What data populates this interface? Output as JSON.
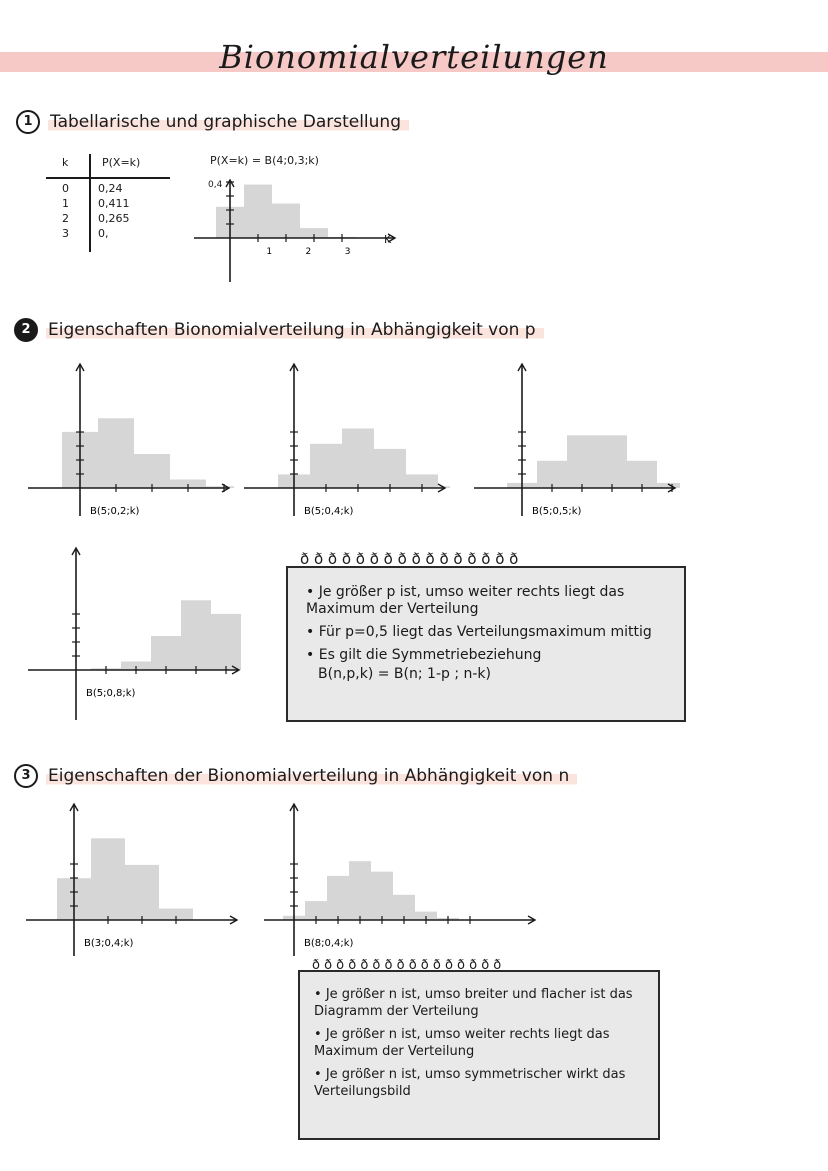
{
  "title": "Bionomialverteilungen",
  "section1": {
    "number": "1",
    "heading": "Tabellarische und graphische Darstellung",
    "table": {
      "headers": [
        "k",
        "P(X=k)"
      ],
      "rows": [
        [
          "0",
          "0,24"
        ],
        [
          "1",
          "0,411"
        ],
        [
          "2",
          "0,265"
        ],
        [
          "3",
          "0,"
        ]
      ]
    },
    "chart_title": "P(X=k) = B(4;0,3;k)",
    "y_tick": "0,4",
    "x_label": "K"
  },
  "section2": {
    "number": "2",
    "heading": "Eigenschaften Bionomialverteilung in Abhängigkeit von p",
    "notes": [
      "Je größer p ist, umso weiter rechts liegt das Maximum der Verteilung",
      "Für p=0,5 liegt das Verteilungsmaximum mittig",
      "Es gilt die Symmetriebeziehung",
      "B(n,p,k) = B(n; 1-p ; n-k)"
    ]
  },
  "section3": {
    "number": "3",
    "heading": "Eigenschaften der Bionomialverteilung in Abhängigkeit von n",
    "notes": [
      "Je größer n ist, umso breiter und flacher ist das Diagramm der Verteilung",
      "Je größer n ist, umso weiter rechts liegt das Maximum der Verteilung",
      "Je größer n ist, umso symmetrischer wirkt das Verteilungsbild"
    ]
  },
  "colors": {
    "band": "#f7c9c6",
    "bar": "#d6d6d6",
    "highlight": "#fbe3de",
    "note_box": "#e9e9e9"
  },
  "chart_data": [
    {
      "type": "bar",
      "title": "P(X=k) = B(4;0,3;k)",
      "x": [
        0,
        1,
        2,
        3,
        4
      ],
      "values": [
        0.24,
        0.411,
        0.265,
        0.076,
        0.008
      ],
      "x_ticks": [
        "1",
        "2",
        "3"
      ],
      "xlabel": "K",
      "ylabel": "",
      "y_ticks": [
        "0,4"
      ]
    },
    {
      "type": "bar",
      "caption": "B(5;0,2;k)",
      "x": [
        0,
        1,
        2,
        3,
        4
      ],
      "values": [
        0.33,
        0.41,
        0.2,
        0.05,
        0.01
      ]
    },
    {
      "type": "bar",
      "caption": "B(5;0,4;k)",
      "x": [
        0,
        1,
        2,
        3,
        4,
        5
      ],
      "values": [
        0.08,
        0.26,
        0.35,
        0.23,
        0.08,
        0.01
      ]
    },
    {
      "type": "bar",
      "caption": "B(5;0,5;k)",
      "x": [
        0,
        1,
        2,
        3,
        4,
        5
      ],
      "values": [
        0.03,
        0.16,
        0.31,
        0.31,
        0.16,
        0.03
      ]
    },
    {
      "type": "bar",
      "caption": "B(5;0,8;k)",
      "x": [
        0,
        1,
        2,
        3,
        4,
        5
      ],
      "values": [
        0.0,
        0.01,
        0.05,
        0.2,
        0.41,
        0.33
      ]
    },
    {
      "type": "bar",
      "caption": "B(3;0,4;k)",
      "x": [
        0,
        1,
        2,
        3
      ],
      "values": [
        0.22,
        0.43,
        0.29,
        0.06
      ]
    },
    {
      "type": "bar",
      "caption": "B(8;0,4;k)",
      "x": [
        0,
        1,
        2,
        3,
        4,
        5,
        6,
        7,
        8
      ],
      "values": [
        0.02,
        0.09,
        0.21,
        0.28,
        0.23,
        0.12,
        0.04,
        0.01,
        0.0
      ]
    }
  ]
}
